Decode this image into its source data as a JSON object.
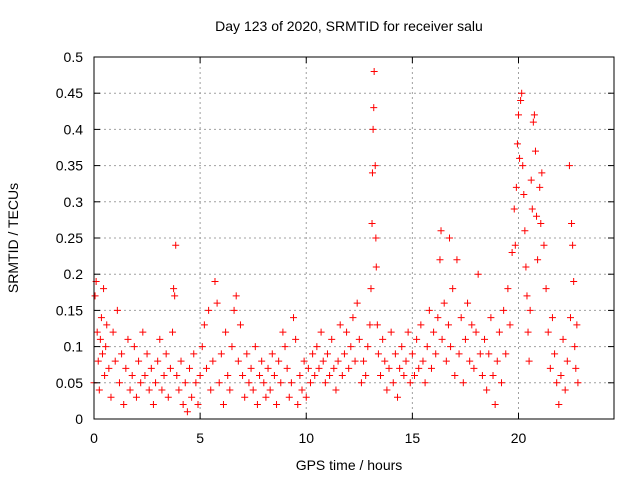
{
  "chart_data": {
    "type": "scatter",
    "title": "Day 123 of 2020, SRMTID for receiver salu",
    "xlabel": "GPS time / hours",
    "ylabel": "SRMTID / TECUs",
    "xlim": [
      0,
      24.5
    ],
    "ylim": [
      0,
      0.5
    ],
    "xticks": [
      0,
      5,
      10,
      15,
      20
    ],
    "xtick_labels": [
      "0",
      "5",
      "10",
      "15",
      "20"
    ],
    "yticks": [
      0,
      0.05,
      0.1,
      0.15,
      0.2,
      0.25,
      0.3,
      0.35,
      0.4,
      0.45,
      0.5
    ],
    "ytick_labels": [
      "0",
      "0.05",
      "0.1",
      "0.15",
      "0.2",
      "0.25",
      "0.3",
      "0.35",
      "0.4",
      "0.45",
      "0.5"
    ],
    "grid": true,
    "marker": "+",
    "color": "#ff0000",
    "series": [
      {
        "name": "SRMTID",
        "points": [
          [
            0.0,
            0.05
          ],
          [
            0.05,
            0.17
          ],
          [
            0.1,
            0.19
          ],
          [
            0.15,
            0.12
          ],
          [
            0.2,
            0.08
          ],
          [
            0.25,
            0.04
          ],
          [
            0.3,
            0.11
          ],
          [
            0.35,
            0.14
          ],
          [
            0.4,
            0.09
          ],
          [
            0.45,
            0.18
          ],
          [
            0.5,
            0.06
          ],
          [
            0.55,
            0.1
          ],
          [
            0.6,
            0.13
          ],
          [
            0.7,
            0.07
          ],
          [
            0.8,
            0.03
          ],
          [
            0.9,
            0.12
          ],
          [
            1.0,
            0.08
          ],
          [
            1.1,
            0.15
          ],
          [
            1.2,
            0.05
          ],
          [
            1.3,
            0.09
          ],
          [
            1.4,
            0.02
          ],
          [
            1.5,
            0.07
          ],
          [
            1.6,
            0.11
          ],
          [
            1.7,
            0.04
          ],
          [
            1.8,
            0.06
          ],
          [
            1.9,
            0.1
          ],
          [
            2.0,
            0.03
          ],
          [
            2.1,
            0.08
          ],
          [
            2.2,
            0.05
          ],
          [
            2.3,
            0.12
          ],
          [
            2.4,
            0.06
          ],
          [
            2.5,
            0.09
          ],
          [
            2.6,
            0.04
          ],
          [
            2.7,
            0.07
          ],
          [
            2.8,
            0.02
          ],
          [
            2.9,
            0.05
          ],
          [
            3.0,
            0.08
          ],
          [
            3.1,
            0.11
          ],
          [
            3.2,
            0.04
          ],
          [
            3.3,
            0.06
          ],
          [
            3.4,
            0.09
          ],
          [
            3.5,
            0.03
          ],
          [
            3.6,
            0.07
          ],
          [
            3.7,
            0.12
          ],
          [
            3.75,
            0.18
          ],
          [
            3.8,
            0.17
          ],
          [
            3.85,
            0.24
          ],
          [
            3.9,
            0.06
          ],
          [
            4.0,
            0.04
          ],
          [
            4.1,
            0.08
          ],
          [
            4.2,
            0.02
          ],
          [
            4.3,
            0.05
          ],
          [
            4.4,
            0.01
          ],
          [
            4.5,
            0.07
          ],
          [
            4.6,
            0.03
          ],
          [
            4.7,
            0.09
          ],
          [
            4.8,
            0.05
          ],
          [
            4.9,
            0.02
          ],
          [
            5.0,
            0.06
          ],
          [
            5.1,
            0.1
          ],
          [
            5.2,
            0.13
          ],
          [
            5.3,
            0.07
          ],
          [
            5.4,
            0.15
          ],
          [
            5.5,
            0.04
          ],
          [
            5.6,
            0.08
          ],
          [
            5.7,
            0.19
          ],
          [
            5.8,
            0.16
          ],
          [
            5.9,
            0.05
          ],
          [
            6.0,
            0.09
          ],
          [
            6.1,
            0.02
          ],
          [
            6.2,
            0.12
          ],
          [
            6.3,
            0.06
          ],
          [
            6.4,
            0.04
          ],
          [
            6.5,
            0.1
          ],
          [
            6.6,
            0.15
          ],
          [
            6.7,
            0.17
          ],
          [
            6.8,
            0.08
          ],
          [
            6.9,
            0.13
          ],
          [
            7.0,
            0.06
          ],
          [
            7.1,
            0.03
          ],
          [
            7.2,
            0.09
          ],
          [
            7.3,
            0.05
          ],
          [
            7.4,
            0.07
          ],
          [
            7.5,
            0.04
          ],
          [
            7.6,
            0.1
          ],
          [
            7.7,
            0.02
          ],
          [
            7.8,
            0.06
          ],
          [
            7.9,
            0.08
          ],
          [
            8.0,
            0.05
          ],
          [
            8.1,
            0.03
          ],
          [
            8.2,
            0.07
          ],
          [
            8.3,
            0.04
          ],
          [
            8.4,
            0.09
          ],
          [
            8.5,
            0.06
          ],
          [
            8.6,
            0.02
          ],
          [
            8.7,
            0.08
          ],
          [
            8.8,
            0.05
          ],
          [
            8.9,
            0.12
          ],
          [
            9.0,
            0.1
          ],
          [
            9.1,
            0.07
          ],
          [
            9.2,
            0.03
          ],
          [
            9.3,
            0.05
          ],
          [
            9.4,
            0.14
          ],
          [
            9.5,
            0.11
          ],
          [
            9.6,
            0.02
          ],
          [
            9.7,
            0.06
          ],
          [
            9.8,
            0.04
          ],
          [
            9.9,
            0.08
          ],
          [
            10.0,
            0.03
          ],
          [
            10.1,
            0.07
          ],
          [
            10.2,
            0.05
          ],
          [
            10.3,
            0.09
          ],
          [
            10.4,
            0.06
          ],
          [
            10.5,
            0.1
          ],
          [
            10.6,
            0.07
          ],
          [
            10.7,
            0.12
          ],
          [
            10.8,
            0.08
          ],
          [
            10.9,
            0.05
          ],
          [
            11.0,
            0.09
          ],
          [
            11.1,
            0.06
          ],
          [
            11.2,
            0.11
          ],
          [
            11.3,
            0.07
          ],
          [
            11.4,
            0.04
          ],
          [
            11.5,
            0.08
          ],
          [
            11.6,
            0.13
          ],
          [
            11.7,
            0.06
          ],
          [
            11.8,
            0.09
          ],
          [
            11.9,
            0.12
          ],
          [
            12.0,
            0.07
          ],
          [
            12.1,
            0.1
          ],
          [
            12.2,
            0.14
          ],
          [
            12.3,
            0.08
          ],
          [
            12.4,
            0.16
          ],
          [
            12.5,
            0.11
          ],
          [
            12.6,
            0.05
          ],
          [
            12.7,
            0.08
          ],
          [
            12.8,
            0.06
          ],
          [
            12.9,
            0.1
          ],
          [
            13.0,
            0.13
          ],
          [
            13.05,
            0.18
          ],
          [
            13.1,
            0.27
          ],
          [
            13.12,
            0.34
          ],
          [
            13.15,
            0.4
          ],
          [
            13.18,
            0.43
          ],
          [
            13.2,
            0.48
          ],
          [
            13.25,
            0.35
          ],
          [
            13.28,
            0.25
          ],
          [
            13.3,
            0.21
          ],
          [
            13.35,
            0.13
          ],
          [
            13.4,
            0.09
          ],
          [
            13.5,
            0.06
          ],
          [
            13.6,
            0.11
          ],
          [
            13.7,
            0.08
          ],
          [
            13.8,
            0.04
          ],
          [
            13.9,
            0.07
          ],
          [
            14.0,
            0.12
          ],
          [
            14.1,
            0.05
          ],
          [
            14.2,
            0.09
          ],
          [
            14.3,
            0.03
          ],
          [
            14.4,
            0.07
          ],
          [
            14.5,
            0.1
          ],
          [
            14.6,
            0.06
          ],
          [
            14.7,
            0.08
          ],
          [
            14.8,
            0.12
          ],
          [
            14.9,
            0.05
          ],
          [
            15.0,
            0.09
          ],
          [
            15.1,
            0.06
          ],
          [
            15.2,
            0.11
          ],
          [
            15.3,
            0.07
          ],
          [
            15.4,
            0.13
          ],
          [
            15.5,
            0.08
          ],
          [
            15.6,
            0.05
          ],
          [
            15.7,
            0.1
          ],
          [
            15.8,
            0.15
          ],
          [
            15.9,
            0.07
          ],
          [
            16.0,
            0.12
          ],
          [
            16.1,
            0.09
          ],
          [
            16.2,
            0.14
          ],
          [
            16.3,
            0.22
          ],
          [
            16.35,
            0.26
          ],
          [
            16.4,
            0.11
          ],
          [
            16.5,
            0.16
          ],
          [
            16.6,
            0.08
          ],
          [
            16.7,
            0.13
          ],
          [
            16.75,
            0.25
          ],
          [
            16.8,
            0.1
          ],
          [
            16.9,
            0.18
          ],
          [
            17.0,
            0.06
          ],
          [
            17.1,
            0.22
          ],
          [
            17.2,
            0.09
          ],
          [
            17.3,
            0.14
          ],
          [
            17.4,
            0.05
          ],
          [
            17.5,
            0.11
          ],
          [
            17.6,
            0.16
          ],
          [
            17.7,
            0.08
          ],
          [
            17.8,
            0.13
          ],
          [
            17.9,
            0.07
          ],
          [
            18.0,
            0.12
          ],
          [
            18.1,
            0.2
          ],
          [
            18.2,
            0.09
          ],
          [
            18.3,
            0.06
          ],
          [
            18.4,
            0.11
          ],
          [
            18.5,
            0.04
          ],
          [
            18.6,
            0.09
          ],
          [
            18.7,
            0.14
          ],
          [
            18.8,
            0.06
          ],
          [
            18.9,
            0.02
          ],
          [
            19.0,
            0.08
          ],
          [
            19.1,
            0.12
          ],
          [
            19.2,
            0.05
          ],
          [
            19.3,
            0.15
          ],
          [
            19.4,
            0.09
          ],
          [
            19.5,
            0.18
          ],
          [
            19.6,
            0.13
          ],
          [
            19.7,
            0.23
          ],
          [
            19.8,
            0.29
          ],
          [
            19.85,
            0.24
          ],
          [
            19.9,
            0.32
          ],
          [
            19.95,
            0.38
          ],
          [
            20.0,
            0.42
          ],
          [
            20.05,
            0.36
          ],
          [
            20.1,
            0.44
          ],
          [
            20.15,
            0.45
          ],
          [
            20.2,
            0.35
          ],
          [
            20.25,
            0.31
          ],
          [
            20.3,
            0.26
          ],
          [
            20.35,
            0.21
          ],
          [
            20.4,
            0.17
          ],
          [
            20.45,
            0.12
          ],
          [
            20.5,
            0.08
          ],
          [
            20.55,
            0.15
          ],
          [
            20.6,
            0.33
          ],
          [
            20.65,
            0.29
          ],
          [
            20.7,
            0.41
          ],
          [
            20.75,
            0.42
          ],
          [
            20.8,
            0.37
          ],
          [
            20.85,
            0.28
          ],
          [
            20.9,
            0.22
          ],
          [
            21.0,
            0.32
          ],
          [
            21.05,
            0.27
          ],
          [
            21.1,
            0.34
          ],
          [
            21.2,
            0.24
          ],
          [
            21.3,
            0.18
          ],
          [
            21.4,
            0.12
          ],
          [
            21.5,
            0.07
          ],
          [
            21.6,
            0.14
          ],
          [
            21.7,
            0.09
          ],
          [
            21.8,
            0.05
          ],
          [
            21.9,
            0.02
          ],
          [
            22.0,
            0.06
          ],
          [
            22.1,
            0.11
          ],
          [
            22.2,
            0.04
          ],
          [
            22.3,
            0.08
          ],
          [
            22.4,
            0.35
          ],
          [
            22.45,
            0.14
          ],
          [
            22.5,
            0.27
          ],
          [
            22.55,
            0.24
          ],
          [
            22.6,
            0.19
          ],
          [
            22.65,
            0.1
          ],
          [
            22.7,
            0.07
          ],
          [
            22.75,
            0.13
          ],
          [
            22.8,
            0.05
          ]
        ]
      }
    ]
  }
}
